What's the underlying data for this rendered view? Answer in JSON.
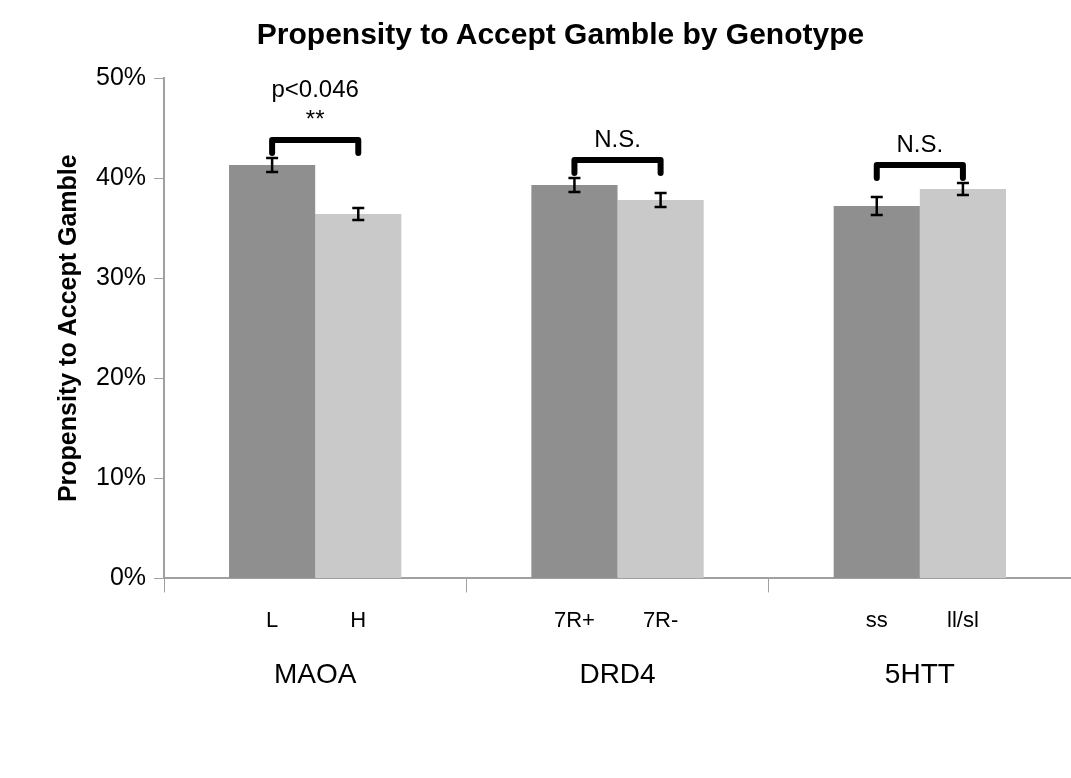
{
  "chart_data": {
    "type": "bar",
    "title": "Propensity to Accept Gamble by Genotype",
    "ylabel": "Propensity to Accept Gamble",
    "categories": [
      "MAOA",
      "DRD4",
      "5HTT"
    ],
    "series": [
      {
        "color": "#8f8f8f",
        "values": [
          41.3,
          39.3,
          37.2
        ],
        "errors": [
          0.7,
          0.7,
          0.9
        ]
      },
      {
        "color": "#c9c9c9",
        "values": [
          36.4,
          37.8,
          38.9
        ],
        "errors": [
          0.6,
          0.7,
          0.6
        ]
      }
    ],
    "ylim": [
      0,
      50
    ],
    "yticks": [
      {
        "value": 0,
        "label": "0%"
      },
      {
        "value": 10,
        "label": "10%"
      },
      {
        "value": 20,
        "label": "20%"
      },
      {
        "value": 30,
        "label": "30%"
      },
      {
        "value": 40,
        "label": "40%"
      },
      {
        "value": 50,
        "label": "50%"
      }
    ],
    "grid": false,
    "legend": false,
    "annotations": [
      "L",
      "H",
      "7R+",
      "7R-",
      "ss",
      "ll/sl",
      "p<0.046",
      "**",
      "N.S.",
      "N.S."
    ]
  }
}
